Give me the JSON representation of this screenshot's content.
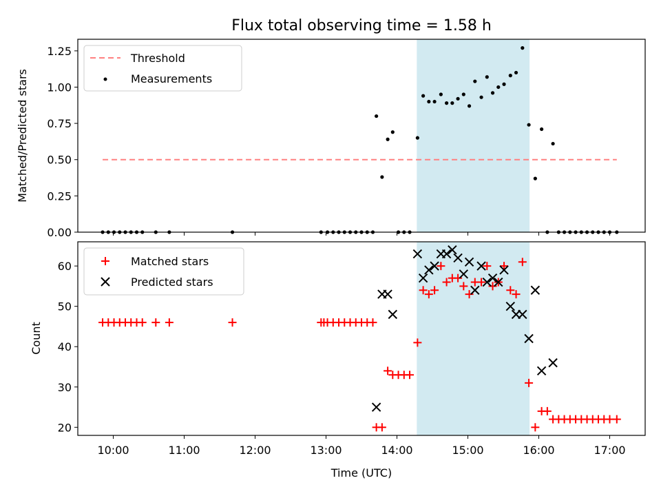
{
  "chart_data": {
    "title": "Flux total observing time = 1.58 h",
    "xlabel": "Time (UTC)",
    "x_unit": "hours UTC",
    "xlim": [
      9.5,
      17.5
    ],
    "xticks": [
      {
        "v": 10,
        "label": "10:00"
      },
      {
        "v": 11,
        "label": "11:00"
      },
      {
        "v": 12,
        "label": "12:00"
      },
      {
        "v": 13,
        "label": "13:00"
      },
      {
        "v": 14,
        "label": "14:00"
      },
      {
        "v": 15,
        "label": "15:00"
      },
      {
        "v": 16,
        "label": "16:00"
      },
      {
        "v": 17,
        "label": "17:00"
      }
    ],
    "highlight_span": {
      "x0": 14.28,
      "x1": 15.87,
      "color": "#add8e6"
    },
    "panels": [
      {
        "type": "scatter",
        "ylabel": "Matched/Predicted stars",
        "ylim": [
          0,
          1.33
        ],
        "yticks": [
          {
            "v": 0,
            "label": "0.00"
          },
          {
            "v": 0.25,
            "label": "0.25"
          },
          {
            "v": 0.5,
            "label": "0.50"
          },
          {
            "v": 0.75,
            "label": "0.75"
          },
          {
            "v": 1.0,
            "label": "1.00"
          },
          {
            "v": 1.25,
            "label": "1.25"
          }
        ],
        "legend": {
          "position": "top-left",
          "entries": [
            {
              "label": "Threshold",
              "kind": "dashed-line",
              "color": "#ff8080"
            },
            {
              "label": "Measurements",
              "kind": "dot",
              "color": "#000000"
            }
          ]
        },
        "threshold": {
          "name": "Threshold",
          "y": 0.5,
          "x": [
            9.85,
            17.1
          ],
          "color": "#ff8080"
        },
        "measurements": {
          "name": "Measurements",
          "color": "#000000",
          "x": [
            9.85,
            9.93,
            10.01,
            10.09,
            10.17,
            10.25,
            10.33,
            10.41,
            10.6,
            10.79,
            11.68,
            12.93,
            13.02,
            13.1,
            13.18,
            13.26,
            13.34,
            13.42,
            13.5,
            13.58,
            13.66,
            13.71,
            13.79,
            13.87,
            13.94,
            14.02,
            14.1,
            14.18,
            14.29,
            14.37,
            14.45,
            14.53,
            14.62,
            14.7,
            14.78,
            14.86,
            14.94,
            15.02,
            15.1,
            15.19,
            15.27,
            15.35,
            15.43,
            15.51,
            15.6,
            15.68,
            15.77,
            15.86,
            15.95,
            16.04,
            16.12,
            16.2,
            16.28,
            16.36,
            16.44,
            16.52,
            16.6,
            16.68,
            16.76,
            16.84,
            16.92,
            17.0,
            17.1
          ],
          "y": [
            0,
            0,
            0,
            0,
            0,
            0,
            0,
            0,
            0,
            0,
            0,
            0,
            0,
            0,
            0,
            0,
            0,
            0,
            0,
            0,
            0,
            0.8,
            0.38,
            0.64,
            0.69,
            0,
            0,
            0,
            0.65,
            0.94,
            0.9,
            0.9,
            0.95,
            0.89,
            0.89,
            0.92,
            0.95,
            0.87,
            1.04,
            0.93,
            1.07,
            0.96,
            1.0,
            1.02,
            1.08,
            1.1,
            1.27,
            0.74,
            0.37,
            0.71,
            0,
            0.61,
            0,
            0,
            0,
            0,
            0,
            0,
            0,
            0,
            0,
            0,
            0
          ]
        }
      },
      {
        "type": "scatter",
        "ylabel": "Count",
        "ylim": [
          18,
          66
        ],
        "yticks": [
          {
            "v": 20,
            "label": "20"
          },
          {
            "v": 30,
            "label": "30"
          },
          {
            "v": 40,
            "label": "40"
          },
          {
            "v": 50,
            "label": "50"
          },
          {
            "v": 60,
            "label": "60"
          }
        ],
        "legend": {
          "position": "top-left",
          "entries": [
            {
              "label": "Matched stars",
              "kind": "plus",
              "color": "#ff0000"
            },
            {
              "label": "Predicted stars",
              "kind": "x",
              "color": "#000000"
            }
          ]
        },
        "matched": {
          "name": "Matched stars",
          "color": "#ff0000",
          "x": [
            9.85,
            9.93,
            10.01,
            10.09,
            10.17,
            10.25,
            10.33,
            10.41,
            10.6,
            10.79,
            11.68,
            12.93,
            12.97,
            13.02,
            13.1,
            13.18,
            13.26,
            13.34,
            13.42,
            13.5,
            13.58,
            13.66,
            13.71,
            13.79,
            13.87,
            13.94,
            14.02,
            14.1,
            14.18,
            14.29,
            14.37,
            14.45,
            14.53,
            14.62,
            14.7,
            14.78,
            14.86,
            14.94,
            15.02,
            15.1,
            15.19,
            15.27,
            15.35,
            15.43,
            15.51,
            15.6,
            15.68,
            15.77,
            15.86,
            15.95,
            16.04,
            16.12,
            16.2,
            16.28,
            16.36,
            16.44,
            16.52,
            16.6,
            16.68,
            16.76,
            16.84,
            16.92,
            17.0,
            17.1
          ],
          "y": [
            46,
            46,
            46,
            46,
            46,
            46,
            46,
            46,
            46,
            46,
            46,
            46,
            46,
            46,
            46,
            46,
            46,
            46,
            46,
            46,
            46,
            46,
            20,
            20,
            34,
            33,
            33,
            33,
            33,
            41,
            54,
            53,
            54,
            60,
            56,
            57,
            57,
            55,
            53,
            56,
            56,
            60,
            55,
            56,
            60,
            54,
            53,
            61,
            31,
            20,
            24,
            24,
            22,
            22,
            22,
            22,
            22,
            22,
            22,
            22,
            22,
            22,
            22,
            22
          ]
        },
        "predicted": {
          "name": "Predicted stars",
          "color": "#000000",
          "x": [
            13.71,
            13.79,
            13.87,
            13.94,
            14.29,
            14.37,
            14.45,
            14.53,
            14.62,
            14.7,
            14.78,
            14.86,
            14.94,
            15.02,
            15.1,
            15.19,
            15.27,
            15.35,
            15.43,
            15.51,
            15.6,
            15.68,
            15.77,
            15.86,
            15.95,
            16.04,
            16.2
          ],
          "y": [
            25,
            53,
            53,
            48,
            63,
            57,
            59,
            60,
            63,
            63,
            64,
            62,
            58,
            61,
            54,
            60,
            56,
            57,
            56,
            59,
            50,
            48,
            48,
            42,
            54,
            34,
            36
          ]
        }
      }
    ]
  }
}
